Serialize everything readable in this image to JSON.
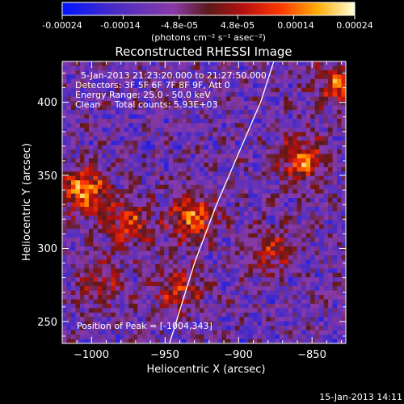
{
  "colorbar": {
    "ticks": [
      "-0.00024",
      "-0.00014",
      "-4.8e-05",
      "4.8e-05",
      "0.00014",
      "0.00024"
    ],
    "units": "(photons cm⁻² s⁻¹ asec⁻²)",
    "range": [
      -0.00024,
      0.00024
    ]
  },
  "chart_data": {
    "type": "heatmap",
    "title": "Reconstructed RHESSI Image",
    "xlabel": "Heliocentric X (arcsec)",
    "ylabel": "Heliocentric Y (arcsec)",
    "xlim": [
      -1020,
      -827
    ],
    "ylim": [
      235,
      428
    ],
    "xticks": [
      -1000,
      -950,
      -900,
      -850
    ],
    "yticks": [
      250,
      300,
      350,
      400
    ],
    "xtick_labels": [
      "−1000",
      "−950",
      "−900",
      "−850"
    ],
    "ytick_labels": [
      "250",
      "300",
      "350",
      "400"
    ],
    "hot_spots": [
      {
        "x": -1005,
        "y": 340,
        "value": 0.00024
      },
      {
        "x": -932,
        "y": 322,
        "value": 0.00022
      },
      {
        "x": -857,
        "y": 360,
        "value": 0.0002
      },
      {
        "x": -832,
        "y": 412,
        "value": 0.00018
      },
      {
        "x": -975,
        "y": 318,
        "value": 0.00016
      },
      {
        "x": -941,
        "y": 272,
        "value": 0.00015
      },
      {
        "x": -994,
        "y": 276,
        "value": 0.00012
      },
      {
        "x": -878,
        "y": 298,
        "value": 0.00014
      }
    ],
    "limb_curve": [
      [
        -947,
        235
      ],
      [
        -930,
        290
      ],
      [
        -915,
        330
      ],
      [
        -900,
        365
      ],
      [
        -885,
        400
      ],
      [
        -876,
        428
      ]
    ],
    "annotations": [
      "5-Jan-2013 21:23:20.000 to 21:27:50.000",
      "Detectors: 3F 5F 6F 7F 8F 9F, Att 0",
      "Energy Range: 25.0 - 50.0 keV",
      "Clean     Total counts: 5.93E+03"
    ],
    "peak_label": "Position of Peak = [-1004,343]"
  },
  "footer_date": "15-Jan-2013 14:11"
}
